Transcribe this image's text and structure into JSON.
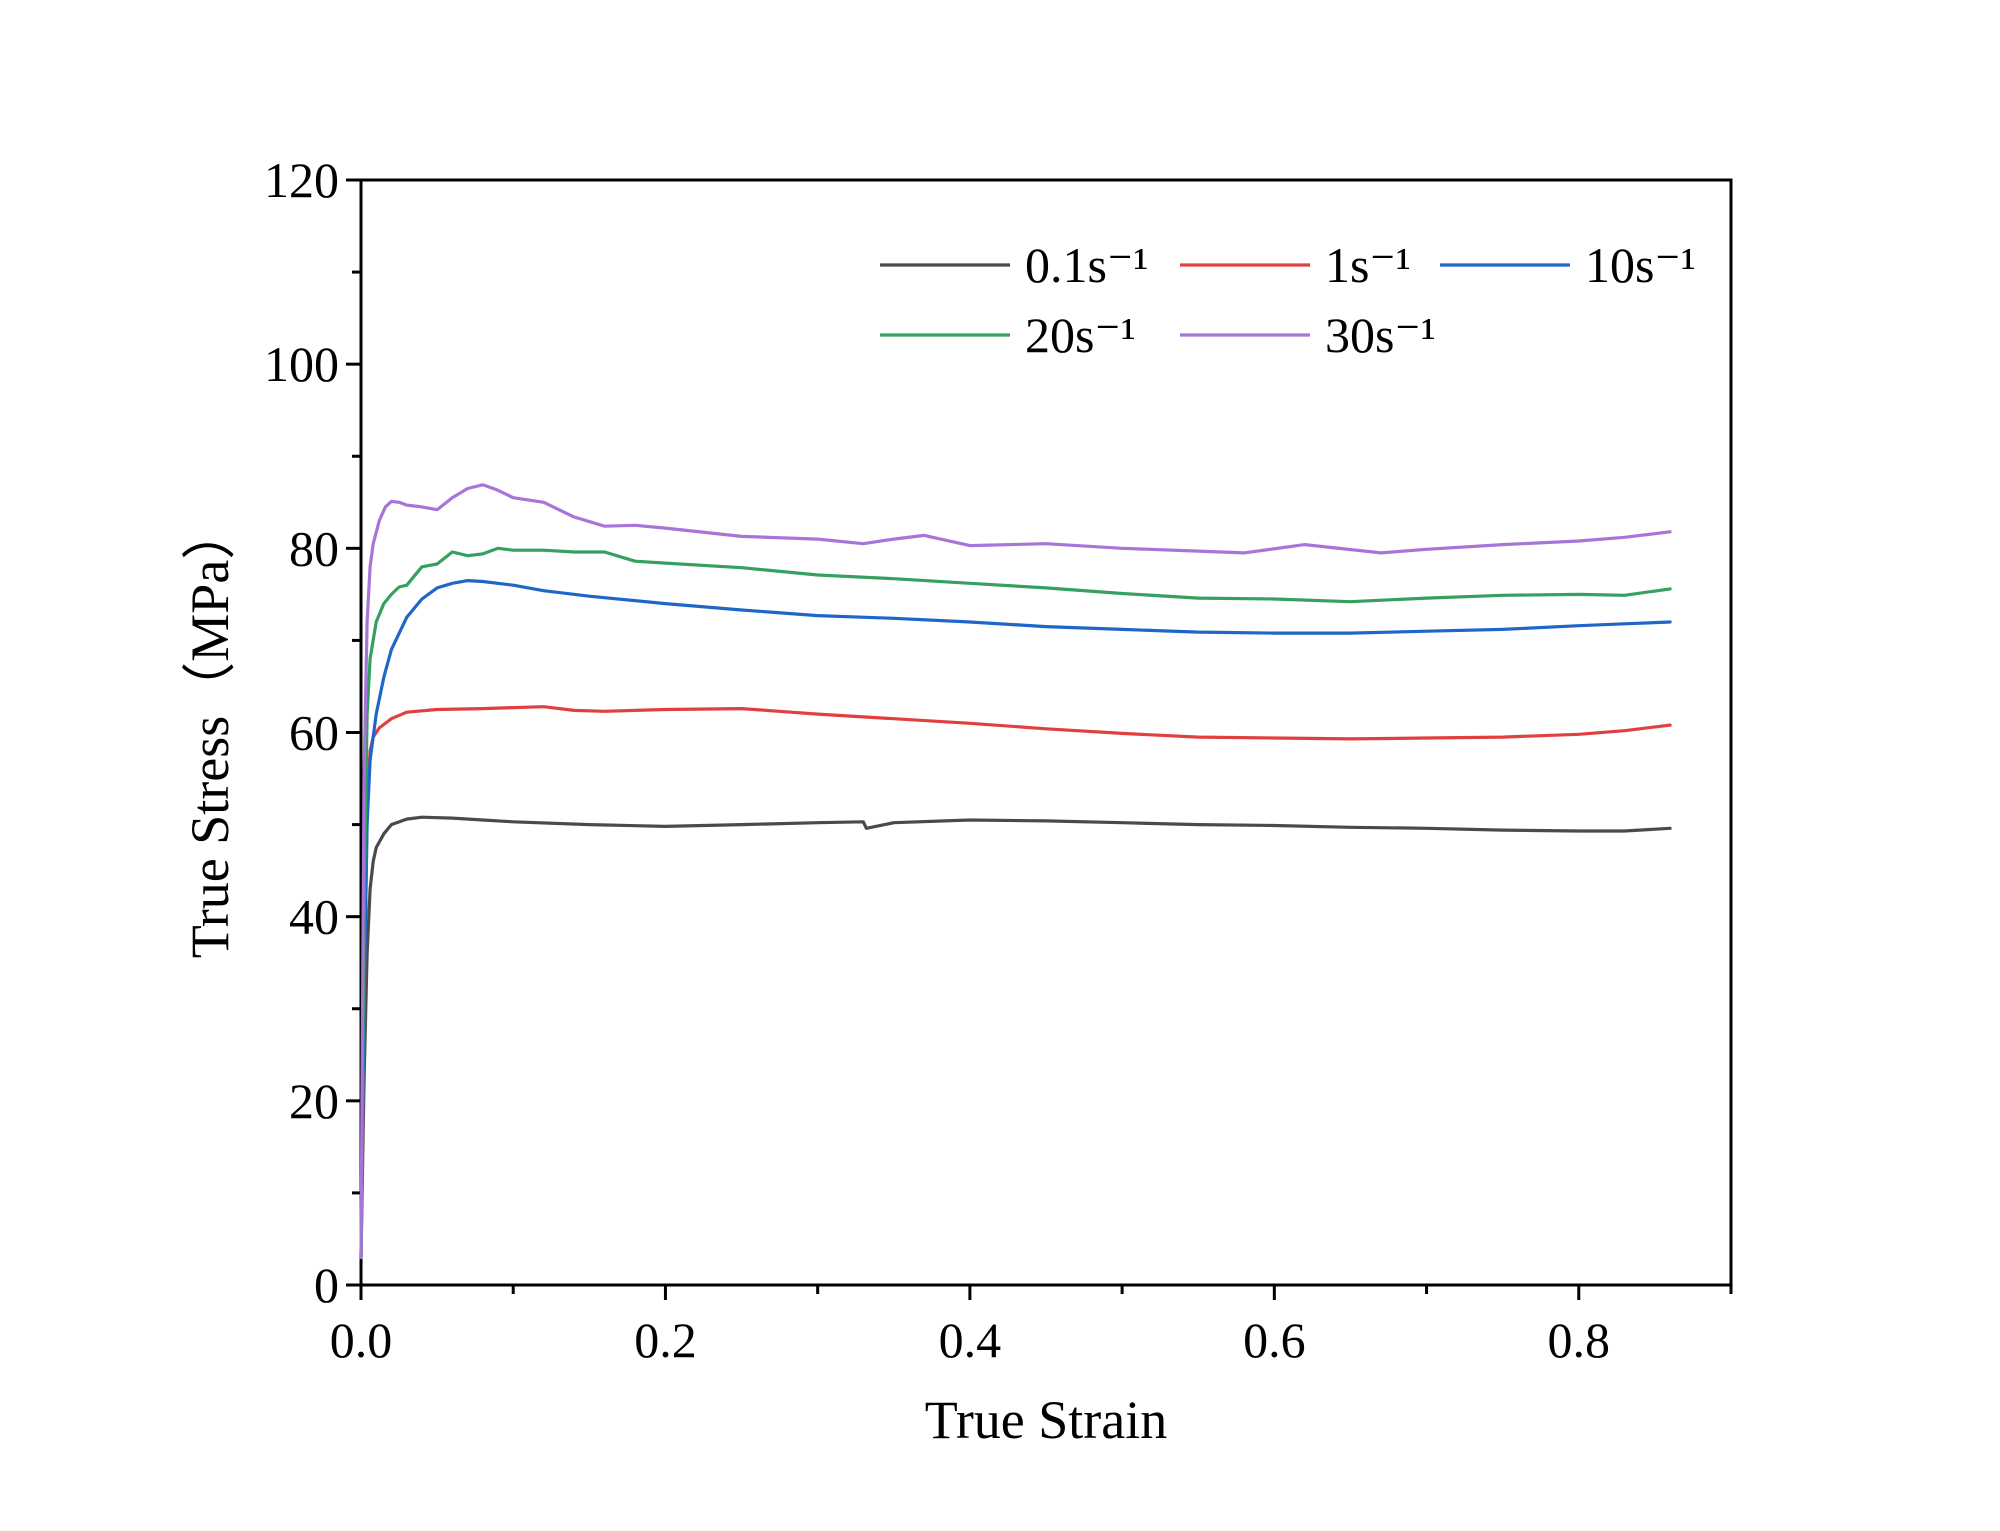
{
  "chart_data": {
    "type": "line",
    "title": "",
    "xlabel": "True Strain",
    "ylabel": "True Stress（MPa）",
    "xlim": [
      0,
      0.9
    ],
    "ylim": [
      0,
      120
    ],
    "x_ticks": [
      0.0,
      0.2,
      0.4,
      0.6,
      0.8
    ],
    "x_tick_labels": [
      "0.0",
      "0.2",
      "0.4",
      "0.6",
      "0.8"
    ],
    "y_ticks": [
      0,
      20,
      40,
      60,
      80,
      100,
      120
    ],
    "y_tick_labels": [
      "0",
      "20",
      "40",
      "60",
      "80",
      "100",
      "120"
    ],
    "grid": false,
    "legend_position": "top-right",
    "series": [
      {
        "name": "0.1s⁻¹",
        "color": "#4a4a4a",
        "x": [
          0.0,
          0.002,
          0.004,
          0.006,
          0.008,
          0.01,
          0.015,
          0.02,
          0.03,
          0.04,
          0.06,
          0.08,
          0.1,
          0.15,
          0.2,
          0.25,
          0.3,
          0.33,
          0.332,
          0.35,
          0.4,
          0.45,
          0.5,
          0.55,
          0.6,
          0.65,
          0.7,
          0.75,
          0.8,
          0.83,
          0.86
        ],
        "y": [
          3,
          22,
          36,
          43,
          46,
          47.5,
          49,
          50,
          50.6,
          50.8,
          50.7,
          50.5,
          50.3,
          50.0,
          49.8,
          50.0,
          50.2,
          50.3,
          49.6,
          50.2,
          50.5,
          50.4,
          50.2,
          50.0,
          49.9,
          49.7,
          49.6,
          49.4,
          49.3,
          49.3,
          49.6
        ]
      },
      {
        "name": "1s⁻¹",
        "color": "#e04040",
        "x": [
          0.0,
          0.002,
          0.004,
          0.006,
          0.008,
          0.012,
          0.02,
          0.03,
          0.05,
          0.08,
          0.1,
          0.12,
          0.14,
          0.16,
          0.2,
          0.25,
          0.3,
          0.35,
          0.4,
          0.45,
          0.5,
          0.55,
          0.6,
          0.65,
          0.7,
          0.75,
          0.8,
          0.83,
          0.86
        ],
        "y": [
          3,
          28,
          52,
          58,
          59.5,
          60.5,
          61.5,
          62.2,
          62.5,
          62.6,
          62.7,
          62.8,
          62.4,
          62.3,
          62.5,
          62.6,
          62.0,
          61.5,
          61.0,
          60.4,
          59.9,
          59.5,
          59.4,
          59.3,
          59.4,
          59.5,
          59.8,
          60.2,
          60.8
        ]
      },
      {
        "name": "10s⁻¹",
        "color": "#1f66c9",
        "x": [
          0.0,
          0.002,
          0.004,
          0.006,
          0.01,
          0.015,
          0.02,
          0.03,
          0.04,
          0.05,
          0.06,
          0.07,
          0.08,
          0.1,
          0.12,
          0.15,
          0.2,
          0.25,
          0.3,
          0.35,
          0.4,
          0.45,
          0.5,
          0.55,
          0.6,
          0.65,
          0.7,
          0.75,
          0.8,
          0.83,
          0.86
        ],
        "y": [
          3,
          30,
          50,
          57,
          62,
          66,
          69,
          72.5,
          74.5,
          75.7,
          76.2,
          76.5,
          76.4,
          76.0,
          75.4,
          74.8,
          74.0,
          73.3,
          72.7,
          72.4,
          72.0,
          71.5,
          71.2,
          70.9,
          70.8,
          70.8,
          71.0,
          71.2,
          71.6,
          71.8,
          72.0
        ]
      },
      {
        "name": "20s⁻¹",
        "color": "#35a060",
        "x": [
          0.0,
          0.002,
          0.004,
          0.006,
          0.01,
          0.015,
          0.02,
          0.025,
          0.03,
          0.04,
          0.05,
          0.06,
          0.07,
          0.08,
          0.09,
          0.1,
          0.12,
          0.14,
          0.16,
          0.18,
          0.2,
          0.25,
          0.3,
          0.35,
          0.4,
          0.45,
          0.5,
          0.55,
          0.6,
          0.65,
          0.7,
          0.75,
          0.8,
          0.83,
          0.86
        ],
        "y": [
          3,
          40,
          62,
          68,
          72,
          74,
          75,
          75.8,
          76,
          78,
          78.3,
          79.6,
          79.2,
          79.4,
          80.0,
          79.8,
          79.8,
          79.6,
          79.6,
          78.6,
          78.4,
          77.9,
          77.1,
          76.7,
          76.2,
          75.7,
          75.1,
          74.6,
          74.5,
          74.2,
          74.6,
          74.9,
          75.0,
          74.9,
          75.6
        ]
      },
      {
        "name": "30s⁻¹",
        "color": "#a874d8",
        "x": [
          0.0,
          0.002,
          0.004,
          0.006,
          0.008,
          0.012,
          0.016,
          0.02,
          0.025,
          0.03,
          0.04,
          0.05,
          0.06,
          0.07,
          0.08,
          0.09,
          0.1,
          0.12,
          0.14,
          0.16,
          0.18,
          0.2,
          0.25,
          0.3,
          0.33,
          0.35,
          0.37,
          0.4,
          0.45,
          0.5,
          0.55,
          0.58,
          0.62,
          0.67,
          0.7,
          0.75,
          0.8,
          0.83,
          0.86
        ],
        "y": [
          3,
          55,
          72,
          78,
          80.5,
          83,
          84.5,
          85.1,
          85.0,
          84.7,
          84.5,
          84.2,
          85.5,
          86.5,
          86.9,
          86.3,
          85.5,
          85.0,
          83.4,
          82.4,
          82.5,
          82.2,
          81.3,
          81.0,
          80.5,
          81.0,
          81.4,
          80.3,
          80.5,
          80.0,
          79.7,
          79.5,
          80.4,
          79.5,
          79.9,
          80.4,
          80.8,
          81.2,
          81.8
        ]
      }
    ]
  }
}
